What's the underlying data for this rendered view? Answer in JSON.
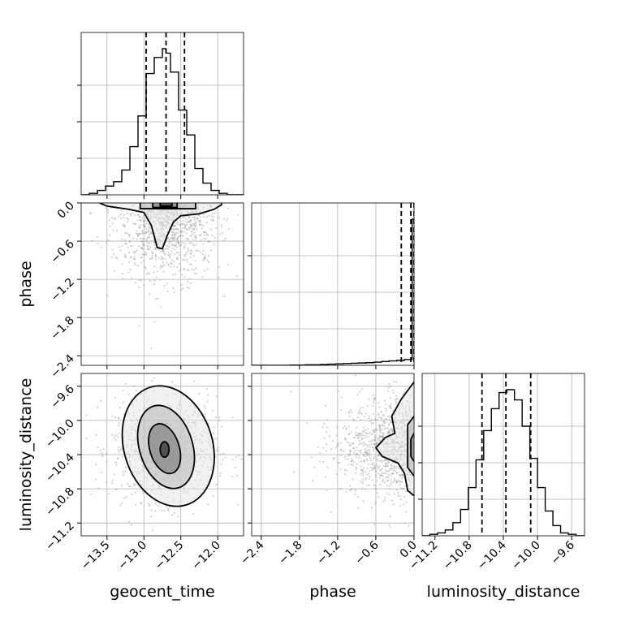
{
  "chart_data": {
    "type": "corner",
    "parameters": [
      {
        "key": "geocent_time",
        "label": "geocent_time",
        "range": [
          -13.85,
          -11.65
        ],
        "ticks": [
          -13.5,
          -13.0,
          -12.5,
          -12.0
        ],
        "tick_labels": [
          "−13.5",
          "−13.0",
          "−12.5",
          "−12.0"
        ],
        "quantiles": [
          -12.97,
          -12.7,
          -12.45
        ]
      },
      {
        "key": "phase",
        "label": "phase",
        "range": [
          -2.55,
          0.0
        ],
        "ticks": [
          -2.4,
          -1.8,
          -1.2,
          -0.6,
          0.0
        ],
        "tick_labels": [
          "−2.4",
          "−1.8",
          "−1.2",
          "−0.6",
          "0.0"
        ],
        "quantiles": [
          -0.2,
          -0.05,
          0.0
        ]
      },
      {
        "key": "luminosity_distance",
        "label": "luminosity_distance",
        "range": [
          -11.35,
          -9.45
        ],
        "ticks": [
          -11.2,
          -10.8,
          -10.4,
          -10.0,
          -9.6
        ],
        "tick_labels": [
          "−11.2",
          "−10.8",
          "−10.4",
          "−10.0",
          "−9.6"
        ],
        "quantiles": [
          -10.65,
          -10.37,
          -10.08
        ]
      }
    ],
    "histograms": [
      {
        "param": "geocent_time",
        "bin_edges": [
          -13.85,
          -13.74,
          -13.63,
          -13.52,
          -13.41,
          -13.3,
          -13.19,
          -13.08,
          -12.97,
          -12.86,
          -12.75,
          -12.7,
          -12.64,
          -12.53,
          -12.42,
          -12.31,
          -12.2,
          -12.09,
          -11.98,
          -11.87,
          -11.76,
          -11.65
        ],
        "counts": [
          0.0,
          0.01,
          0.03,
          0.06,
          0.09,
          0.17,
          0.33,
          0.54,
          0.83,
          0.94,
          1.0,
          0.97,
          0.84,
          0.58,
          0.41,
          0.18,
          0.08,
          0.03,
          0.01,
          0.0,
          0.0
        ]
      },
      {
        "param": "phase",
        "bin_edges": [
          -2.55,
          -2.43,
          -2.31,
          -2.19,
          -2.07,
          -1.95,
          -1.83,
          -1.71,
          -1.59,
          -1.47,
          -1.35,
          -1.23,
          -1.11,
          -0.99,
          -0.87,
          -0.75,
          -0.63,
          -0.51,
          -0.39,
          -0.27,
          -0.15,
          -0.03,
          0.0
        ],
        "counts": [
          0.0,
          0.0,
          0.0,
          0.0,
          0.0,
          0.002,
          0.002,
          0.004,
          0.004,
          0.006,
          0.008,
          0.01,
          0.012,
          0.014,
          0.016,
          0.018,
          0.022,
          0.026,
          0.03,
          0.034,
          0.04,
          1.0
        ]
      },
      {
        "param": "luminosity_distance",
        "bin_edges": [
          -11.35,
          -11.26,
          -11.17,
          -11.08,
          -10.99,
          -10.9,
          -10.81,
          -10.72,
          -10.63,
          -10.54,
          -10.45,
          -10.36,
          -10.27,
          -10.18,
          -10.09,
          -10.0,
          -9.91,
          -9.82,
          -9.73,
          -9.64,
          -9.55,
          -9.45
        ],
        "counts": [
          0.0,
          0.01,
          0.02,
          0.04,
          0.09,
          0.18,
          0.33,
          0.52,
          0.72,
          0.87,
          0.98,
          1.0,
          0.93,
          0.75,
          0.53,
          0.33,
          0.17,
          0.07,
          0.02,
          0.01,
          0.0
        ]
      }
    ],
    "pairs": [
      {
        "x": "geocent_time",
        "y": "phase",
        "density_center": [
          -12.7,
          -0.03
        ],
        "levels": [
          [
            [
              -13.6,
              0.0
            ],
            [
              -13.5,
              -0.05
            ],
            [
              -13.2,
              -0.1
            ],
            [
              -13.0,
              -0.15
            ],
            [
              -12.9,
              -0.35
            ],
            [
              -12.82,
              -0.7
            ],
            [
              -12.75,
              -0.72
            ],
            [
              -12.68,
              -0.5
            ],
            [
              -12.6,
              -0.3
            ],
            [
              -12.5,
              -0.2
            ],
            [
              -12.25,
              -0.17
            ],
            [
              -12.05,
              -0.1
            ],
            [
              -11.95,
              -0.03
            ],
            [
              -11.95,
              0.0
            ]
          ],
          [
            [
              -13.05,
              0.0
            ],
            [
              -13.05,
              -0.09
            ],
            [
              -12.3,
              -0.09
            ],
            [
              -12.3,
              0.0
            ]
          ],
          [
            [
              -12.88,
              0.0
            ],
            [
              -12.88,
              -0.07
            ],
            [
              -12.55,
              -0.07
            ],
            [
              -12.55,
              0.0
            ]
          ],
          [
            [
              -12.78,
              0.0
            ],
            [
              -12.78,
              -0.05
            ],
            [
              -12.62,
              -0.05
            ],
            [
              -12.62,
              0.0
            ]
          ]
        ]
      },
      {
        "x": "geocent_time",
        "y": "luminosity_distance",
        "density_center": [
          -12.72,
          -10.33
        ],
        "levels": [
          {
            "cx": -12.67,
            "cy": -10.3,
            "a": 0.6,
            "b": 0.72,
            "rot": -0.3
          },
          {
            "cx": -12.7,
            "cy": -10.31,
            "a": 0.36,
            "b": 0.5,
            "rot": -0.3
          },
          {
            "cx": -12.72,
            "cy": -10.33,
            "a": 0.2,
            "b": 0.3,
            "rot": -0.3
          },
          {
            "cx": -12.72,
            "cy": -10.34,
            "a": 0.06,
            "b": 0.09,
            "rot": 0.0
          }
        ]
      },
      {
        "x": "phase",
        "y": "luminosity_distance",
        "density_center": [
          -0.03,
          -10.3
        ],
        "levels": [
          [
            [
              0.0,
              -9.55
            ],
            [
              -0.2,
              -9.75
            ],
            [
              -0.35,
              -9.95
            ],
            [
              -0.3,
              -10.15
            ],
            [
              -0.45,
              -10.2
            ],
            [
              -0.6,
              -10.32
            ],
            [
              -0.5,
              -10.42
            ],
            [
              -0.25,
              -10.5
            ],
            [
              -0.15,
              -10.62
            ],
            [
              -0.1,
              -10.82
            ],
            [
              0.0,
              -10.88
            ]
          ],
          [
            [
              0.0,
              -9.95
            ],
            [
              -0.1,
              -10.05
            ],
            [
              -0.1,
              -10.55
            ],
            [
              0.0,
              -10.65
            ]
          ],
          [
            [
              0.0,
              -10.15
            ],
            [
              -0.05,
              -10.22
            ],
            [
              -0.05,
              -10.42
            ],
            [
              0.0,
              -10.48
            ]
          ]
        ]
      }
    ],
    "samples_note": "Grey scatter of posterior samples drawn behind contours",
    "grid": true,
    "colors": {
      "line": "#000000",
      "grid": "#b0b0b0",
      "scatter": "#9a9a9a",
      "frame": "#000000"
    }
  }
}
